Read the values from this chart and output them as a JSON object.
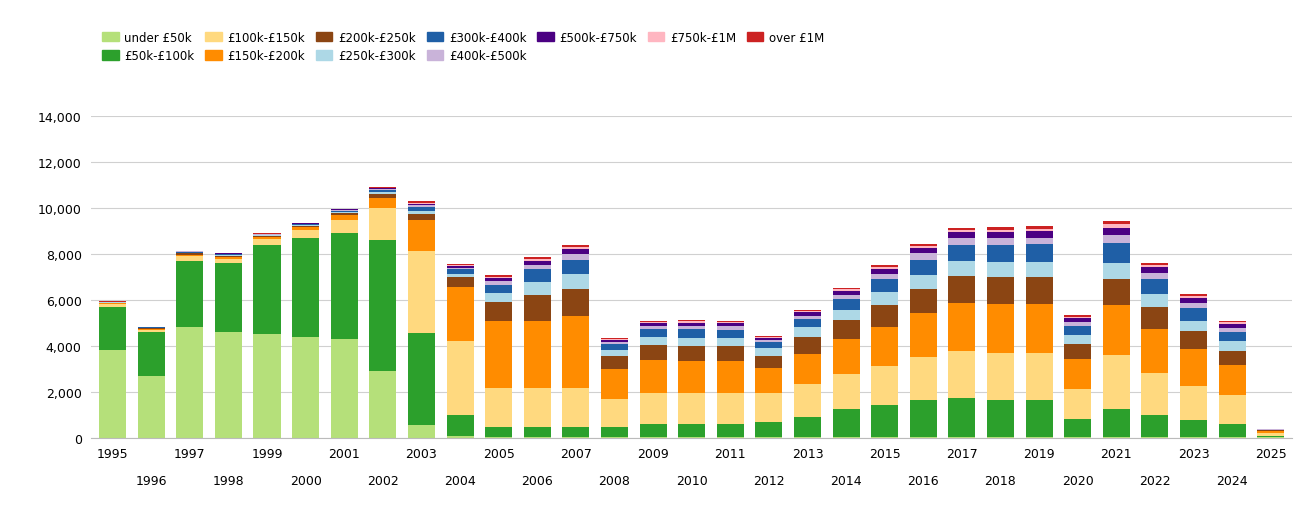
{
  "years": [
    1995,
    1996,
    1997,
    1998,
    1999,
    2000,
    2001,
    2002,
    2003,
    2004,
    2005,
    2006,
    2007,
    2008,
    2009,
    2010,
    2011,
    2012,
    2013,
    2014,
    2015,
    2016,
    2017,
    2018,
    2019,
    2020,
    2021,
    2022,
    2023,
    2024,
    2025
  ],
  "categories": [
    "under £50k",
    "£50k-£100k",
    "£100k-£150k",
    "£150k-£200k",
    "£200k-£250k",
    "£250k-£300k",
    "£300k-£400k",
    "£400k-£500k",
    "£500k-£750k",
    "£750k-£1M",
    "over £1M"
  ],
  "colors": [
    "#b5e07a",
    "#2ca02c",
    "#ffd97f",
    "#ff8c00",
    "#8b4513",
    "#add8e6",
    "#1f5fa6",
    "#c9b3d9",
    "#4b0082",
    "#ffb6c1",
    "#cc2222"
  ],
  "data": {
    "under £50k": [
      3800,
      2700,
      4800,
      4600,
      4500,
      4400,
      4300,
      2900,
      550,
      50,
      30,
      30,
      30,
      30,
      30,
      30,
      30,
      30,
      30,
      30,
      30,
      30,
      30,
      30,
      30,
      20,
      30,
      20,
      20,
      20,
      5
    ],
    "£50k-£100k": [
      1900,
      1900,
      2900,
      3000,
      3900,
      4300,
      4600,
      5700,
      4000,
      950,
      450,
      450,
      450,
      450,
      550,
      550,
      550,
      650,
      850,
      1200,
      1400,
      1600,
      1700,
      1600,
      1600,
      800,
      1200,
      950,
      750,
      580,
      80
    ],
    "£100k-£150k": [
      100,
      100,
      200,
      200,
      250,
      350,
      600,
      1400,
      3600,
      3200,
      1700,
      1700,
      1700,
      1200,
      1350,
      1350,
      1350,
      1250,
      1450,
      1550,
      1700,
      1900,
      2050,
      2050,
      2050,
      1300,
      2350,
      1850,
      1500,
      1250,
      120
    ],
    "£150k-£200k": [
      50,
      50,
      70,
      70,
      70,
      120,
      200,
      450,
      1350,
      2350,
      2900,
      2900,
      3100,
      1300,
      1450,
      1400,
      1400,
      1100,
      1300,
      1500,
      1700,
      1900,
      2100,
      2150,
      2150,
      1300,
      2200,
      1900,
      1600,
      1300,
      80
    ],
    "£200k-£250k": [
      30,
      30,
      60,
      60,
      60,
      70,
      80,
      170,
      260,
      430,
      830,
      1130,
      1200,
      560,
      650,
      650,
      640,
      540,
      740,
      830,
      950,
      1050,
      1150,
      1150,
      1150,
      650,
      1150,
      950,
      760,
      640,
      35
    ],
    "£250k-£300k": [
      15,
      15,
      30,
      30,
      30,
      35,
      55,
      85,
      130,
      170,
      380,
      560,
      640,
      270,
      360,
      370,
      370,
      320,
      430,
      470,
      570,
      620,
      660,
      670,
      680,
      380,
      680,
      570,
      460,
      400,
      15
    ],
    "£300k-£400k": [
      15,
      12,
      35,
      35,
      35,
      38,
      58,
      88,
      170,
      175,
      380,
      570,
      640,
      270,
      330,
      380,
      370,
      270,
      380,
      460,
      570,
      660,
      710,
      760,
      760,
      430,
      870,
      660,
      570,
      430,
      12
    ],
    "£400k-£500k": [
      8,
      8,
      15,
      15,
      15,
      15,
      25,
      35,
      70,
      70,
      145,
      185,
      230,
      92,
      135,
      140,
      138,
      92,
      138,
      185,
      225,
      265,
      280,
      285,
      285,
      165,
      335,
      260,
      215,
      170,
      8
    ],
    "£500k-£750k": [
      8,
      8,
      15,
      15,
      15,
      15,
      25,
      35,
      70,
      70,
      140,
      185,
      225,
      92,
      120,
      140,
      136,
      90,
      136,
      165,
      210,
      240,
      265,
      265,
      280,
      160,
      335,
      260,
      210,
      165,
      8
    ],
    "£750k-£1M": [
      4,
      4,
      8,
      8,
      8,
      8,
      12,
      18,
      35,
      35,
      55,
      74,
      92,
      46,
      55,
      55,
      55,
      37,
      55,
      65,
      83,
      92,
      101,
      101,
      110,
      65,
      140,
      101,
      83,
      65,
      4
    ],
    "over £1M": [
      25,
      8,
      16,
      16,
      16,
      16,
      25,
      35,
      55,
      55,
      74,
      92,
      92,
      46,
      55,
      55,
      55,
      37,
      55,
      65,
      83,
      92,
      101,
      101,
      110,
      55,
      140,
      101,
      83,
      55,
      8
    ]
  },
  "ylim": [
    0,
    14000
  ],
  "yticks": [
    0,
    2000,
    4000,
    6000,
    8000,
    10000,
    12000,
    14000
  ],
  "figsize": [
    13.05,
    5.1
  ],
  "dpi": 100,
  "bar_width": 0.7,
  "grid_color": "#d0d0d0",
  "tick_fontsize": 9,
  "legend_fontsize": 8.5
}
